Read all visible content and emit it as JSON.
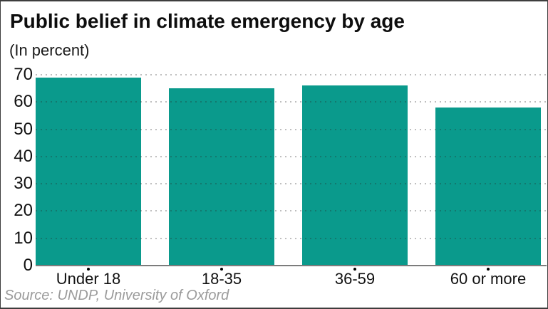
{
  "chart_data": {
    "type": "bar",
    "title": "Public belief in climate emergency by age",
    "subtitle": "(In percent)",
    "source": "Source: UNDP, University of Oxford",
    "categories": [
      "Under 18",
      "18-35",
      "36-59",
      "60 or more"
    ],
    "values": [
      69,
      65,
      66,
      58
    ],
    "xlabel": "",
    "ylabel": "In percent",
    "ylim": [
      0,
      70
    ],
    "yticks": [
      0,
      10,
      20,
      30,
      40,
      50,
      60,
      70
    ],
    "grid": "horizontal-dotted",
    "legend": "none",
    "colors": {
      "bar": "#0a9a8c",
      "grid_dots": "#b5b5b5",
      "axis_line": "#7c7c7c",
      "source_text": "#9b9b9b"
    }
  }
}
